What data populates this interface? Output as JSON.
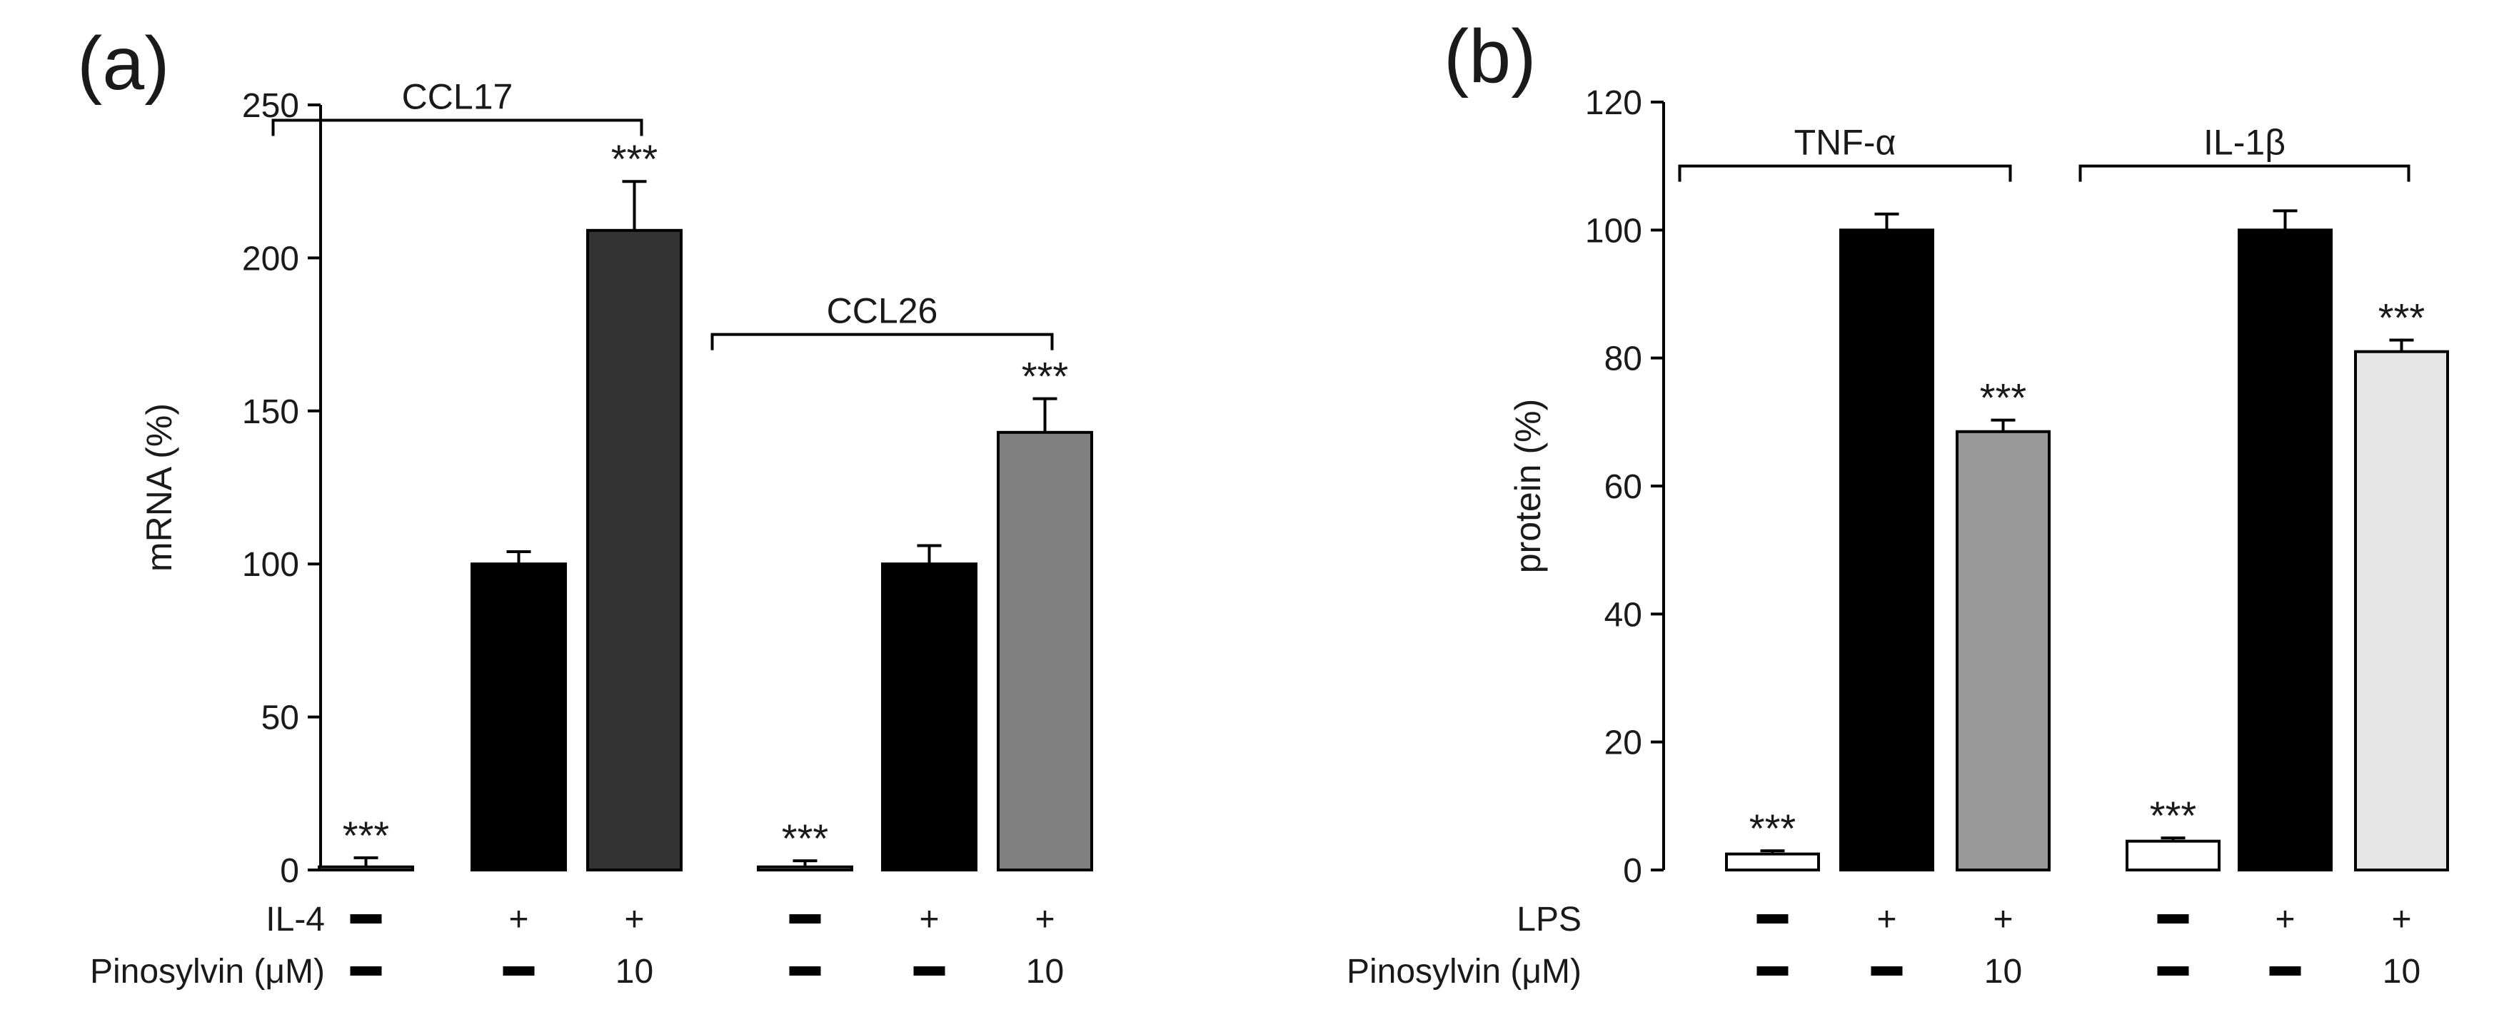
{
  "chart_data": [
    {
      "panel_label": "(a)",
      "type": "bar",
      "ylabel": "mRNA (%)",
      "ylim": [
        0,
        250
      ],
      "yticks": [
        0,
        50,
        100,
        150,
        200,
        250
      ],
      "bars": [
        {
          "value": 1,
          "error": 3,
          "color": "#ffffff",
          "sig": "***"
        },
        {
          "value": 100,
          "error": 4,
          "color": "#000000",
          "sig": ""
        },
        {
          "value": 209,
          "error": 16,
          "color": "#333333",
          "sig": "***"
        },
        {
          "value": 1,
          "error": 2,
          "color": "#ffffff",
          "sig": "***"
        },
        {
          "value": 100,
          "error": 6,
          "color": "#000000",
          "sig": ""
        },
        {
          "value": 143,
          "error": 11,
          "color": "#808080",
          "sig": "***"
        }
      ],
      "groups": [
        {
          "label": "CCL17",
          "first_bar": 0,
          "last_bar": 2,
          "y": 245
        },
        {
          "label": "CCL26",
          "first_bar": 3,
          "last_bar": 5,
          "y": 175
        }
      ],
      "treatment_rows": [
        {
          "label": "IL-4",
          "marks": [
            "—",
            "+",
            "+",
            "—",
            "+",
            "+"
          ]
        },
        {
          "label": "Pinosylvin (μM)",
          "marks": [
            "—",
            "—",
            "10",
            "—",
            "—",
            "10"
          ]
        }
      ]
    },
    {
      "panel_label": "(b)",
      "type": "bar",
      "ylabel": "protein (%)",
      "ylim": [
        0,
        120
      ],
      "yticks": [
        0,
        20,
        40,
        60,
        80,
        100,
        120
      ],
      "bars": [
        {
          "value": 2.5,
          "error": 0.5,
          "color": "#ffffff",
          "sig": "***"
        },
        {
          "value": 100,
          "error": 2.5,
          "color": "#000000",
          "sig": ""
        },
        {
          "value": 68.5,
          "error": 1.8,
          "color": "#999999",
          "sig": "***"
        },
        {
          "value": 4.5,
          "error": 0.5,
          "color": "#ffffff",
          "sig": "***"
        },
        {
          "value": 100,
          "error": 3,
          "color": "#000000",
          "sig": ""
        },
        {
          "value": 81,
          "error": 1.8,
          "color": "#e6e6e6",
          "sig": "***"
        }
      ],
      "groups": [
        {
          "label": "TNF-α",
          "first_bar": 0,
          "last_bar": 2,
          "y": 110
        },
        {
          "label": "IL-1β",
          "first_bar": 3,
          "last_bar": 5,
          "y": 110
        }
      ],
      "treatment_rows": [
        {
          "label": "LPS",
          "marks": [
            "—",
            "+",
            "+",
            "—",
            "+",
            "+"
          ]
        },
        {
          "label": "Pinosylvin (μM)",
          "marks": [
            "—",
            "—",
            "10",
            "—",
            "—",
            "10"
          ]
        }
      ]
    }
  ]
}
